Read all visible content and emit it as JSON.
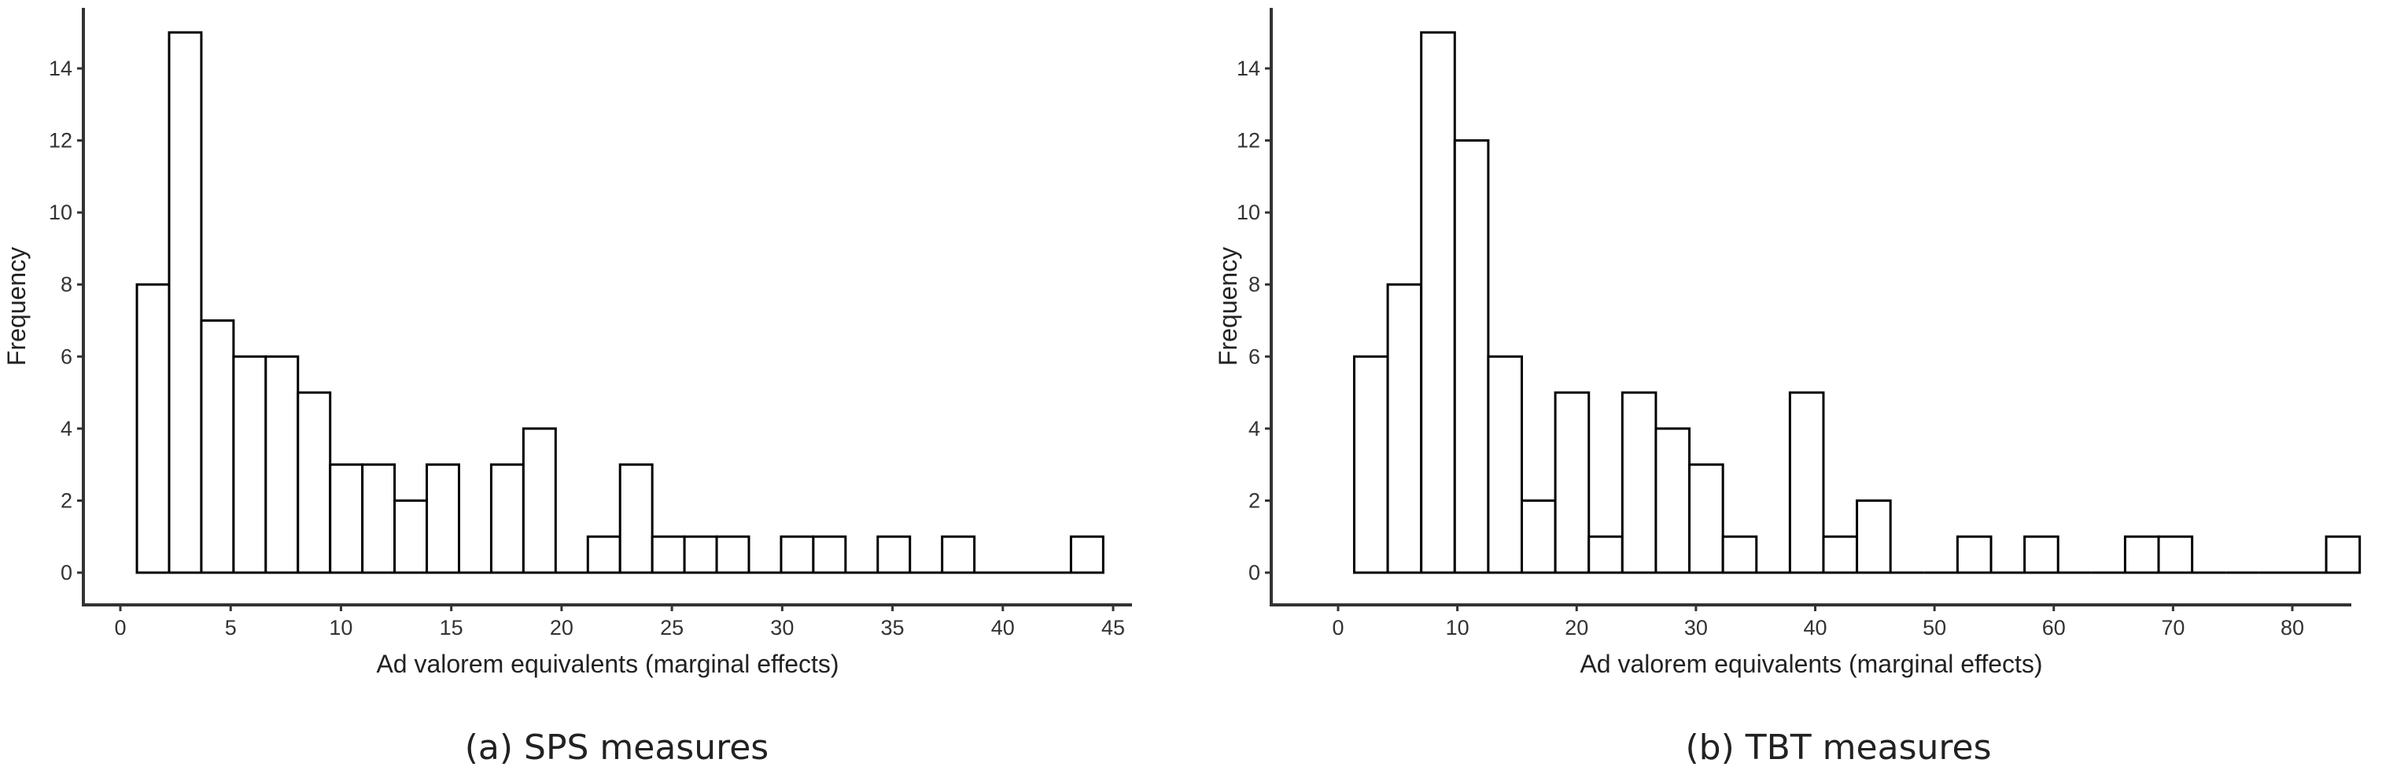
{
  "chart_data": [
    {
      "type": "bar",
      "subtype": "histogram",
      "caption": "(a) SPS measures",
      "xlabel": "Ad valorem equivalents (marginal effects)",
      "ylabel": "Frequency",
      "bin_start": 0.75,
      "bin_width": 1.46,
      "values": [
        8,
        15,
        7,
        6,
        6,
        5,
        3,
        3,
        2,
        3,
        0,
        3,
        4,
        0,
        1,
        3,
        1,
        1,
        1,
        0,
        1,
        1,
        0,
        1,
        0,
        1,
        0,
        0,
        0,
        1
      ],
      "xticks": [
        0,
        5,
        10,
        15,
        20,
        25,
        30,
        35,
        40,
        45
      ],
      "yticks": [
        0,
        2,
        4,
        6,
        8,
        10,
        12,
        14
      ],
      "xlim": [
        -2.3,
        46
      ],
      "ylim": [
        -1.3,
        15.9
      ],
      "grid": false,
      "fill": "#ffffff",
      "stroke": "#000000"
    },
    {
      "type": "bar",
      "subtype": "histogram",
      "caption": "(b) TBT measures",
      "xlabel": "Ad valorem equivalents (marginal effects)",
      "ylabel": "Frequency",
      "bin_start": 1.35,
      "bin_width": 2.81,
      "values": [
        6,
        8,
        15,
        12,
        6,
        2,
        5,
        1,
        5,
        4,
        3,
        1,
        0,
        5,
        1,
        2,
        0,
        0,
        1,
        0,
        1,
        0,
        0,
        1,
        1,
        0,
        0,
        0,
        0,
        1
      ],
      "xticks": [
        0,
        10,
        20,
        30,
        40,
        50,
        60,
        70,
        80
      ],
      "yticks": [
        0,
        2,
        4,
        6,
        8,
        10,
        12,
        14
      ],
      "xlim": [
        -5.5,
        90
      ],
      "ylim": [
        -1.3,
        15.9
      ],
      "grid": false,
      "fill": "#ffffff",
      "stroke": "#000000"
    }
  ]
}
